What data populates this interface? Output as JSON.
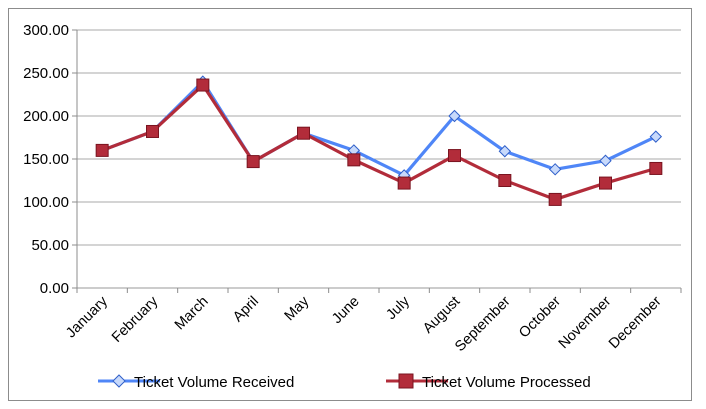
{
  "chart_data": {
    "type": "line",
    "title": "",
    "xlabel": "",
    "ylabel": "",
    "ylim": [
      0,
      300
    ],
    "yticks": [
      "0.00",
      "50.00",
      "100.00",
      "150.00",
      "200.00",
      "250.00",
      "300.00"
    ],
    "grid": true,
    "legend_position": "bottom",
    "categories": [
      "January",
      "February",
      "March",
      "April",
      "May",
      "June",
      "July",
      "August",
      "September",
      "October",
      "November",
      "December"
    ],
    "series": [
      {
        "name": "Ticket Volume Received",
        "color": "#4f86f7",
        "marker": "diamond",
        "values": [
          160,
          182,
          240,
          147,
          180,
          160,
          131,
          200,
          159,
          138,
          148,
          176
        ]
      },
      {
        "name": "Ticket Volume Processed",
        "color": "#b22c3a",
        "marker": "square",
        "values": [
          160,
          182,
          236,
          147,
          180,
          149,
          122,
          154,
          125,
          103,
          122,
          139
        ]
      }
    ]
  }
}
